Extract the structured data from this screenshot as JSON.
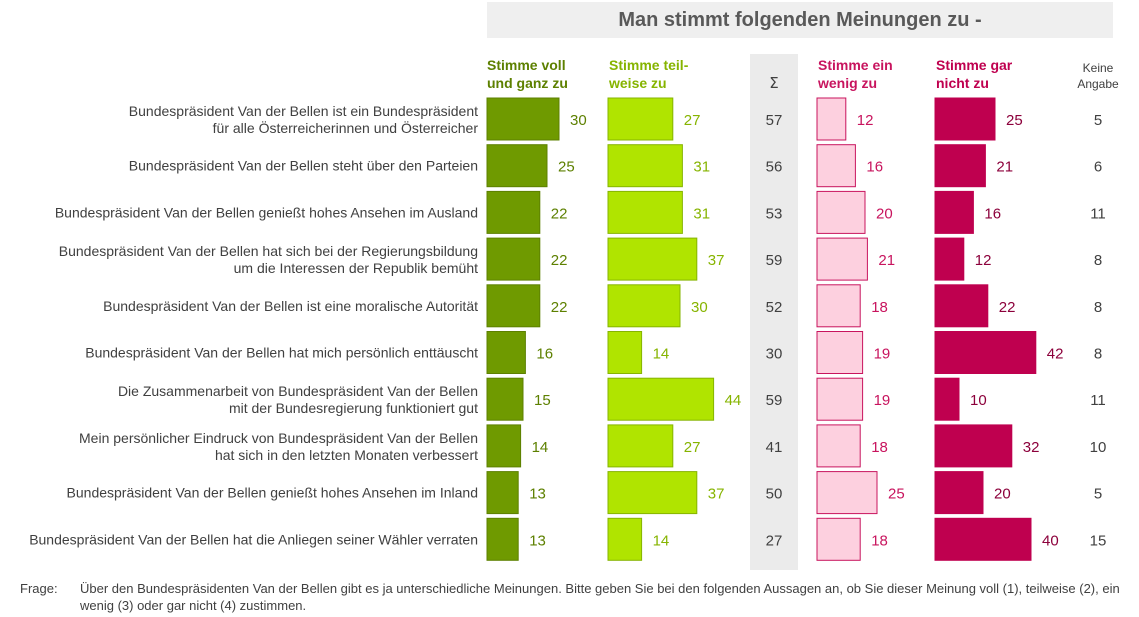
{
  "title": "Man stimmt folgenden Meinungen zu -",
  "headers": {
    "voll": [
      "Stimme voll",
      "und ganz zu"
    ],
    "teilweise": [
      "Stimme teil-",
      "weise zu"
    ],
    "sum": "Σ",
    "wenig": [
      "Stimme ein",
      "wenig zu"
    ],
    "garnicht": [
      "Stimme gar",
      "nicht zu"
    ],
    "keine": [
      "Keine",
      "Angabe"
    ]
  },
  "colors": {
    "voll_fill": "#6f9a00",
    "voll_text": "#5d8000",
    "teilweise_fill": "#b0e400",
    "teilweise_text": "#86b400",
    "wenig_fill": "#fdd0df",
    "wenig_stroke": "#c8145e",
    "wenig_text": "#c8145e",
    "garnicht_fill": "#bf004f",
    "garnicht_text": "#8c003b",
    "neutral_text": "#404040"
  },
  "chart_data": {
    "type": "bar",
    "categories": [
      [
        "Bundespräsident Van der Bellen ist ein Bundespräsident",
        "für alle Österreicherinnen und Österreicher"
      ],
      [
        "Bundespräsident Van der Bellen steht über den Parteien"
      ],
      [
        "Bundespräsident Van der Bellen genießt hohes Ansehen im Ausland"
      ],
      [
        "Bundespräsident Van der Bellen hat sich bei der Regierungsbildung",
        "um die Interessen der Republik bemüht"
      ],
      [
        "Bundespräsident Van der Bellen ist eine moralische Autorität"
      ],
      [
        "Bundespräsident Van der Bellen hat mich persönlich enttäuscht"
      ],
      [
        "Die Zusammenarbeit von Bundespräsident Van der Bellen",
        "mit der Bundesregierung funktioniert gut"
      ],
      [
        "Mein persönlicher Eindruck von Bundespräsident Van der Bellen",
        "hat sich in den letzten Monaten verbessert"
      ],
      [
        "Bundespräsident Van der Bellen genießt hohes Ansehen im Inland"
      ],
      [
        "Bundespräsident Van der Bellen hat die Anliegen seiner Wähler verraten"
      ]
    ],
    "series": [
      {
        "name": "Stimme voll und ganz zu",
        "values": [
          30,
          25,
          22,
          22,
          22,
          16,
          15,
          14,
          13,
          13
        ]
      },
      {
        "name": "Stimme teilweise zu",
        "values": [
          27,
          31,
          31,
          37,
          30,
          14,
          44,
          27,
          37,
          14
        ]
      },
      {
        "name": "Σ",
        "values": [
          57,
          56,
          53,
          59,
          52,
          30,
          59,
          41,
          50,
          27
        ]
      },
      {
        "name": "Stimme ein wenig zu",
        "values": [
          12,
          16,
          20,
          21,
          18,
          19,
          19,
          18,
          25,
          18
        ]
      },
      {
        "name": "Stimme gar nicht zu",
        "values": [
          25,
          21,
          16,
          12,
          22,
          42,
          10,
          32,
          20,
          40
        ]
      },
      {
        "name": "Keine Angabe",
        "values": [
          5,
          6,
          11,
          8,
          8,
          8,
          11,
          10,
          5,
          15
        ]
      }
    ]
  },
  "footnote": {
    "label": "Frage:",
    "text": "Über den Bundespräsidenten Van der Bellen gibt es ja unterschiedliche Meinungen. Bitte geben Sie bei den folgenden Aussagen an, ob Sie dieser Meinung voll (1), teilweise (2), ein wenig (3) oder gar nicht (4) zustimmen."
  }
}
